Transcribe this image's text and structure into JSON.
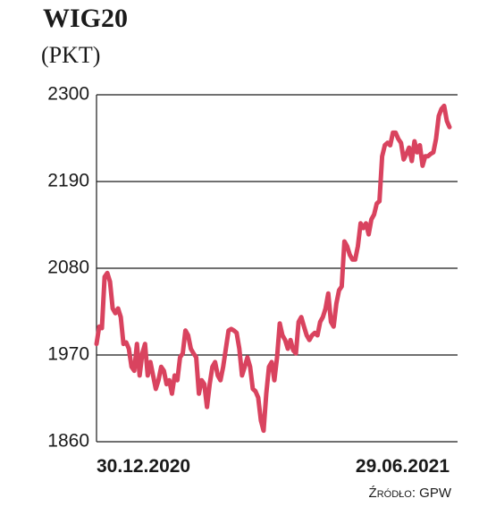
{
  "chart_data": {
    "type": "line",
    "title": "WIG20",
    "subtitle": "(PKT)",
    "source": "Źródło: GPW",
    "categories": [
      "30.12.2020",
      null,
      null,
      null,
      null,
      null,
      null,
      null,
      null,
      null,
      null,
      null,
      null,
      null,
      null,
      null,
      null,
      null,
      null,
      null,
      null,
      null,
      null,
      null,
      null,
      null,
      null,
      null,
      null,
      null,
      null,
      null,
      null,
      null,
      null,
      null,
      null,
      null,
      null,
      null,
      null,
      null,
      null,
      null,
      null,
      null,
      null,
      null,
      null,
      null,
      null,
      null,
      null,
      null,
      null,
      null,
      null,
      null,
      null,
      null,
      null,
      null,
      null,
      null,
      null,
      null,
      null,
      null,
      null,
      null,
      null,
      null,
      null,
      null,
      null,
      null,
      null,
      null,
      null,
      null,
      null,
      null,
      null,
      null,
      null,
      null,
      null,
      null,
      null,
      null,
      null,
      null,
      null,
      null,
      null,
      null,
      null,
      null,
      null,
      null,
      null,
      null,
      null,
      null,
      null,
      null,
      null,
      null,
      null,
      null,
      null,
      null,
      null,
      null,
      null,
      null,
      null,
      null,
      null,
      null,
      null,
      null,
      null,
      null,
      null,
      null,
      null,
      null,
      null,
      null,
      null,
      "29.06.2021"
    ],
    "series": [
      {
        "color": "#d9435f",
        "values": [
          1984,
          2006,
          2004,
          2069,
          2074,
          2063,
          2029,
          2023,
          2029,
          2018,
          1984,
          1986,
          1978,
          1955,
          1950,
          1984,
          1944,
          1972,
          1984,
          1944,
          1961,
          1944,
          1927,
          1938,
          1955,
          1950,
          1933,
          1938,
          1921,
          1944,
          1938,
          1967,
          1972,
          2001,
          1995,
          1978,
          1972,
          1967,
          1921,
          1938,
          1933,
          1904,
          1933,
          1955,
          1961,
          1944,
          1938,
          1955,
          1978,
          2001,
          2003,
          2001,
          1998,
          1978,
          1944,
          1955,
          1967,
          1955,
          1927,
          1924,
          1916,
          1887,
          1874,
          1921,
          1955,
          1961,
          1938,
          1967,
          2010,
          1995,
          1989,
          1978,
          1989,
          1976,
          1972,
          2012,
          2018,
          2006,
          1995,
          1989,
          1995,
          1998,
          1995,
          2012,
          2018,
          2029,
          2048,
          2012,
          2006,
          2035,
          2052,
          2057,
          2114,
          2108,
          2097,
          2091,
          2091,
          2108,
          2137,
          2131,
          2137,
          2123,
          2142,
          2148,
          2162,
          2165,
          2222,
          2236,
          2239,
          2236,
          2252,
          2252,
          2244,
          2239,
          2218,
          2225,
          2233,
          2216,
          2241,
          2227,
          2236,
          2210,
          2222,
          2222,
          2225,
          2227,
          2244,
          2273,
          2282,
          2286,
          2267,
          2259
        ]
      }
    ],
    "ylim": [
      1860,
      2300
    ],
    "yticks": [
      1860,
      1970,
      2080,
      2190,
      2300
    ],
    "grid": true
  }
}
